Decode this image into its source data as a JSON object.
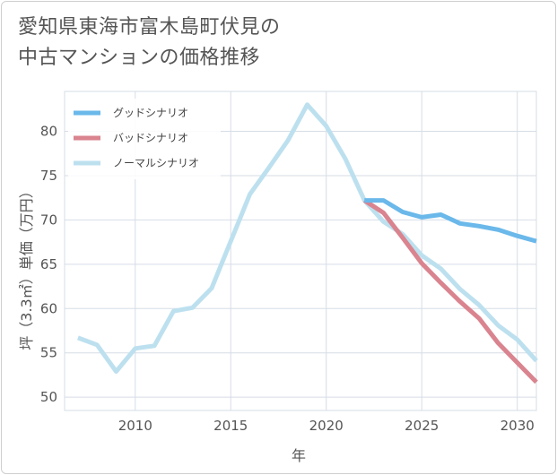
{
  "title": {
    "line1": "愛知県東海市富木島町伏見の",
    "line2": "中古マンションの価格推移"
  },
  "chart_data": {
    "type": "line",
    "xlabel": "年",
    "ylabel": "坪（3.3㎡）単価（万円）",
    "xlim": [
      2006.3,
      2031
    ],
    "ylim": [
      48.5,
      84.5
    ],
    "x_ticks": [
      2010,
      2015,
      2020,
      2025,
      2030
    ],
    "y_ticks": [
      50,
      55,
      60,
      65,
      70,
      75,
      80
    ],
    "grid": true,
    "legend_position": "top-left",
    "series": [
      {
        "name": "グッドシナリオ",
        "color": "#6bb8ea",
        "points": [
          [
            2022,
            72.2
          ],
          [
            2023,
            72.2
          ],
          [
            2024,
            70.9
          ],
          [
            2025,
            70.3
          ],
          [
            2026,
            70.6
          ],
          [
            2027,
            69.6
          ],
          [
            2028,
            69.3
          ],
          [
            2029,
            68.9
          ],
          [
            2030,
            68.2
          ],
          [
            2031,
            67.6
          ]
        ]
      },
      {
        "name": "バッドシナリオ",
        "color": "#d9848f",
        "points": [
          [
            2022,
            72.2
          ],
          [
            2023,
            70.8
          ],
          [
            2024,
            68.0
          ],
          [
            2025,
            65.1
          ],
          [
            2026,
            62.9
          ],
          [
            2027,
            60.8
          ],
          [
            2028,
            58.9
          ],
          [
            2029,
            56.1
          ],
          [
            2030,
            53.9
          ],
          [
            2031,
            51.7
          ]
        ]
      },
      {
        "name": "ノーマルシナリオ",
        "color": "#bde0ef",
        "points": [
          [
            2007,
            56.7
          ],
          [
            2008,
            55.9
          ],
          [
            2009,
            52.9
          ],
          [
            2010,
            55.5
          ],
          [
            2011,
            55.8
          ],
          [
            2012,
            59.7
          ],
          [
            2013,
            60.1
          ],
          [
            2014,
            62.3
          ],
          [
            2015,
            67.6
          ],
          [
            2016,
            72.9
          ],
          [
            2017,
            75.9
          ],
          [
            2018,
            79.0
          ],
          [
            2019,
            83.0
          ],
          [
            2020,
            80.6
          ],
          [
            2021,
            76.9
          ],
          [
            2022,
            72.2
          ],
          [
            2023,
            69.8
          ],
          [
            2024,
            68.4
          ],
          [
            2025,
            66.0
          ],
          [
            2026,
            64.5
          ],
          [
            2027,
            62.2
          ],
          [
            2028,
            60.4
          ],
          [
            2029,
            58.1
          ],
          [
            2030,
            56.5
          ],
          [
            2031,
            54.1
          ]
        ]
      }
    ]
  }
}
